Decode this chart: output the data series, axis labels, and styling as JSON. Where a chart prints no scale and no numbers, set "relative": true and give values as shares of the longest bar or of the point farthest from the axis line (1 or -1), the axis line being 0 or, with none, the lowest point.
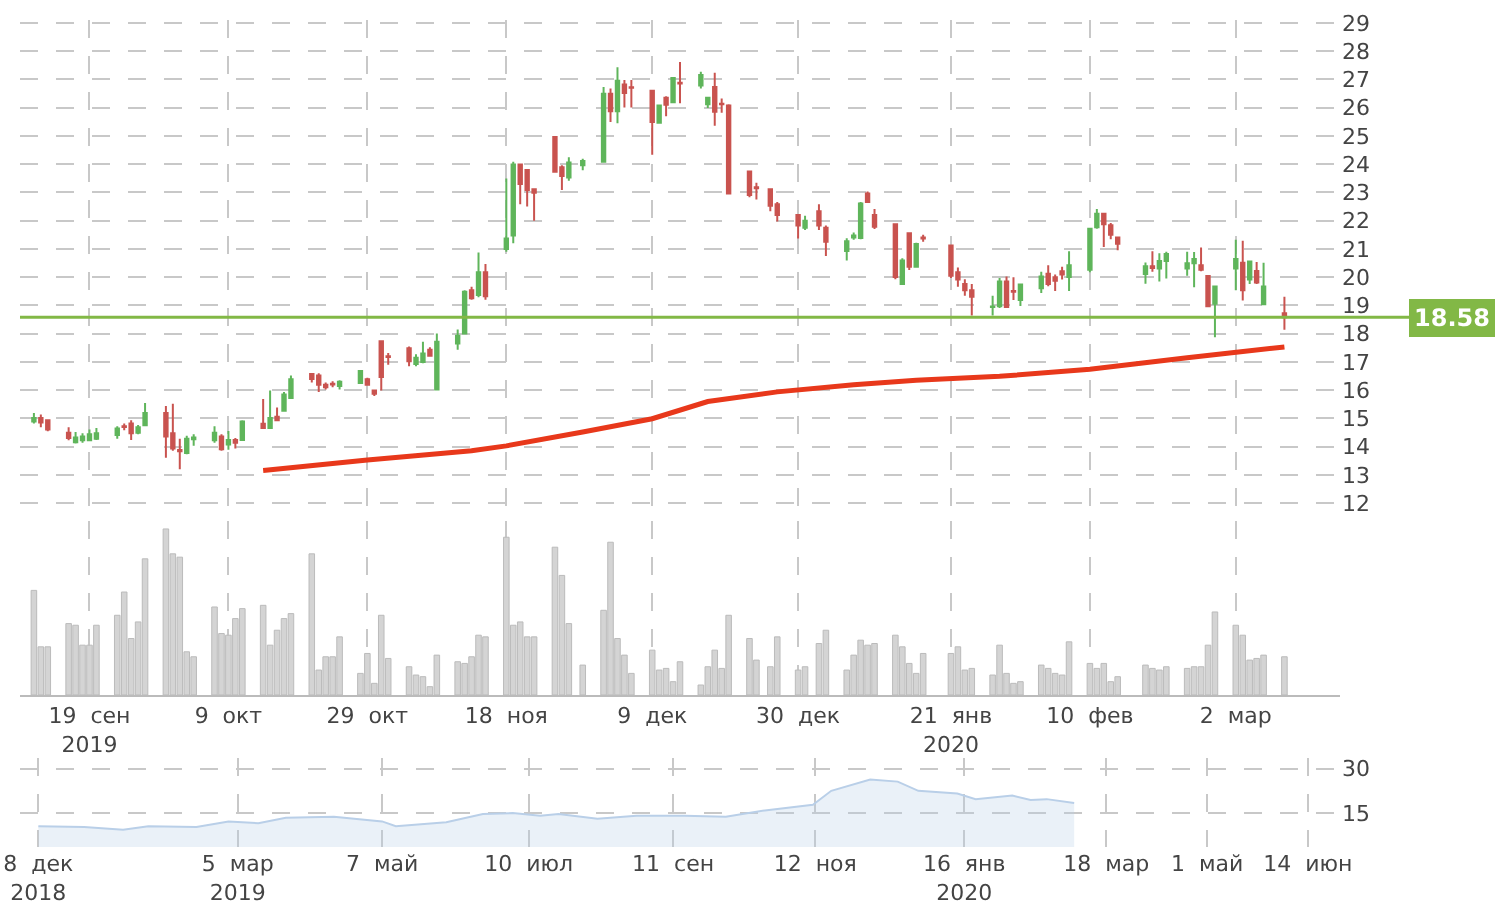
{
  "chart_data": [
    {
      "type": "candlestick",
      "x": [
        "2019-09-11",
        "2019-09-12",
        "2019-09-13",
        "2019-09-16",
        "2019-09-17",
        "2019-09-18",
        "2019-09-19",
        "2019-09-20",
        "2019-09-23",
        "2019-09-24",
        "2019-09-25",
        "2019-09-26",
        "2019-09-27",
        "2019-09-30",
        "2019-10-01",
        "2019-10-02",
        "2019-10-03",
        "2019-10-04",
        "2019-10-07",
        "2019-10-08",
        "2019-10-09",
        "2019-10-10",
        "2019-10-11",
        "2019-10-14",
        "2019-10-15",
        "2019-10-16",
        "2019-10-17",
        "2019-10-18",
        "2019-10-21",
        "2019-10-22",
        "2019-10-23",
        "2019-10-24",
        "2019-10-25",
        "2019-10-28",
        "2019-10-29",
        "2019-10-30",
        "2019-10-31",
        "2019-11-01",
        "2019-11-04",
        "2019-11-05",
        "2019-11-06",
        "2019-11-07",
        "2019-11-08",
        "2019-11-11",
        "2019-11-12",
        "2019-11-13",
        "2019-11-14",
        "2019-11-15",
        "2019-11-18",
        "2019-11-19",
        "2019-11-20",
        "2019-11-21",
        "2019-11-22",
        "2019-11-25",
        "2019-11-26",
        "2019-11-27",
        "2019-11-29",
        "2019-12-02",
        "2019-12-03",
        "2019-12-04",
        "2019-12-05",
        "2019-12-06",
        "2019-12-09",
        "2019-12-10",
        "2019-12-11",
        "2019-12-12",
        "2019-12-13",
        "2019-12-16",
        "2019-12-17",
        "2019-12-18",
        "2019-12-19",
        "2019-12-20",
        "2019-12-23",
        "2019-12-24",
        "2019-12-26",
        "2019-12-27",
        "2019-12-30",
        "2019-12-31",
        "2020-01-02",
        "2020-01-03",
        "2020-01-06",
        "2020-01-07",
        "2020-01-08",
        "2020-01-09",
        "2020-01-10",
        "2020-01-13",
        "2020-01-14",
        "2020-01-15",
        "2020-01-16",
        "2020-01-17",
        "2020-01-21",
        "2020-01-22",
        "2020-01-23",
        "2020-01-24",
        "2020-01-27",
        "2020-01-28",
        "2020-01-29",
        "2020-01-30",
        "2020-01-31",
        "2020-02-03",
        "2020-02-04",
        "2020-02-05",
        "2020-02-06",
        "2020-02-07",
        "2020-02-10",
        "2020-02-11",
        "2020-02-12",
        "2020-02-13",
        "2020-02-14",
        "2020-02-18",
        "2020-02-19",
        "2020-02-20",
        "2020-02-21",
        "2020-02-24",
        "2020-02-25",
        "2020-02-26",
        "2020-02-27",
        "2020-02-28",
        "2020-03-02",
        "2020-03-03",
        "2020-03-04",
        "2020-03-05",
        "2020-03-06",
        "2020-03-09"
      ],
      "ohlc": [
        [
          14.89,
          15.19,
          14.82,
          15.02
        ],
        [
          15.02,
          15.14,
          14.69,
          14.86
        ],
        [
          14.94,
          14.94,
          14.55,
          14.61
        ],
        [
          14.49,
          14.69,
          14.23,
          14.31
        ],
        [
          14.16,
          14.52,
          14.11,
          14.33
        ],
        [
          14.23,
          14.48,
          14.14,
          14.36
        ],
        [
          14.23,
          14.61,
          14.19,
          14.44
        ],
        [
          14.28,
          14.66,
          14.24,
          14.48
        ],
        [
          14.41,
          14.72,
          14.28,
          14.64
        ],
        [
          14.72,
          14.82,
          14.58,
          14.7
        ],
        [
          14.82,
          14.94,
          14.24,
          14.48
        ],
        [
          14.49,
          14.77,
          14.44,
          14.69
        ],
        [
          14.76,
          15.55,
          14.72,
          15.19
        ],
        [
          15.19,
          15.44,
          13.61,
          14.36
        ],
        [
          14.48,
          15.52,
          13.86,
          13.94
        ],
        [
          13.88,
          14.28,
          13.2,
          13.84
        ],
        [
          13.78,
          14.39,
          13.73,
          14.28
        ],
        [
          14.26,
          14.44,
          14.03,
          14.33
        ],
        [
          14.23,
          14.72,
          14.14,
          14.49
        ],
        [
          14.36,
          14.44,
          13.86,
          13.91
        ],
        [
          14.08,
          14.56,
          13.89,
          14.24
        ],
        [
          14.24,
          14.31,
          13.94,
          14.14
        ],
        [
          14.24,
          14.94,
          14.23,
          14.89
        ],
        [
          14.81,
          15.69,
          14.66,
          14.66
        ],
        [
          14.66,
          15.99,
          14.66,
          15.02
        ],
        [
          15.06,
          15.39,
          14.91,
          14.94
        ],
        [
          15.27,
          15.94,
          15.27,
          15.85
        ],
        [
          15.72,
          16.52,
          15.7,
          16.39
        ],
        [
          16.57,
          16.57,
          16.27,
          16.4
        ],
        [
          16.52,
          16.6,
          15.94,
          16.19
        ],
        [
          16.19,
          16.27,
          16.02,
          16.1
        ],
        [
          16.23,
          16.32,
          16.1,
          16.2
        ],
        [
          16.15,
          16.35,
          16.02,
          16.3
        ],
        [
          16.25,
          16.68,
          16.25,
          16.68
        ],
        [
          16.39,
          16.44,
          16.19,
          16.19
        ],
        [
          15.99,
          16.02,
          15.79,
          15.87
        ],
        [
          17.73,
          17.73,
          15.99,
          16.47
        ],
        [
          17.2,
          17.32,
          16.9,
          17.17
        ],
        [
          17.48,
          17.55,
          16.85,
          17.02
        ],
        [
          16.93,
          17.27,
          16.85,
          17.15
        ],
        [
          17.0,
          17.71,
          16.95,
          17.3
        ],
        [
          17.43,
          17.52,
          17.18,
          17.22
        ],
        [
          16.02,
          18.01,
          16.02,
          17.71
        ],
        [
          17.65,
          18.15,
          17.43,
          17.93
        ],
        [
          18.01,
          19.54,
          18.01,
          19.48
        ],
        [
          19.54,
          19.66,
          19.2,
          19.25
        ],
        [
          19.37,
          20.87,
          19.29,
          20.17
        ],
        [
          20.17,
          20.47,
          19.2,
          19.32
        ],
        [
          21.0,
          23.49,
          20.9,
          21.37
        ],
        [
          21.47,
          24.08,
          21.2,
          23.99
        ],
        [
          23.99,
          23.99,
          22.58,
          23.3
        ],
        [
          23.79,
          23.79,
          22.5,
          23.08
        ],
        [
          23.11,
          23.11,
          22.0,
          22.99
        ],
        [
          24.96,
          24.96,
          23.73,
          23.73
        ],
        [
          23.89,
          23.96,
          23.08,
          23.58
        ],
        [
          23.53,
          24.24,
          23.41,
          24.06
        ],
        [
          23.96,
          24.19,
          23.78,
          24.11
        ],
        [
          24.08,
          26.73,
          24.08,
          26.49
        ],
        [
          26.49,
          26.68,
          25.49,
          25.87
        ],
        [
          25.87,
          27.43,
          25.45,
          26.95
        ],
        [
          26.82,
          26.98,
          26.0,
          26.52
        ],
        [
          26.72,
          26.98,
          26.0,
          26.7
        ],
        [
          26.6,
          26.6,
          24.33,
          25.49
        ],
        [
          25.46,
          26.07,
          25.46,
          26.07
        ],
        [
          26.35,
          26.4,
          25.69,
          26.1
        ],
        [
          26.19,
          27.05,
          26.19,
          27.05
        ],
        [
          26.88,
          27.61,
          26.15,
          26.85
        ],
        [
          26.78,
          27.27,
          26.68,
          27.15
        ],
        [
          26.12,
          26.35,
          25.99,
          26.35
        ],
        [
          26.73,
          27.23,
          25.36,
          25.85
        ],
        [
          26.14,
          26.32,
          25.82,
          26.12
        ],
        [
          26.07,
          26.12,
          22.96,
          22.96
        ],
        [
          23.74,
          23.74,
          22.83,
          22.91
        ],
        [
          23.18,
          23.34,
          22.75,
          23.15
        ],
        [
          23.11,
          23.11,
          22.33,
          22.53
        ],
        [
          22.58,
          22.66,
          21.97,
          22.2
        ],
        [
          22.2,
          22.2,
          21.37,
          21.83
        ],
        [
          21.75,
          22.17,
          21.67,
          22.0
        ],
        [
          22.33,
          22.58,
          21.67,
          21.83
        ],
        [
          21.75,
          21.83,
          20.75,
          21.25
        ],
        [
          20.93,
          21.38,
          20.59,
          21.27
        ],
        [
          21.4,
          21.58,
          21.32,
          21.47
        ],
        [
          21.39,
          22.66,
          21.34,
          22.61
        ],
        [
          22.96,
          23.03,
          22.66,
          22.66
        ],
        [
          22.2,
          22.41,
          21.7,
          21.78
        ],
        [
          21.87,
          21.87,
          19.93,
          20.01
        ],
        [
          19.76,
          20.67,
          19.76,
          20.59
        ],
        [
          21.55,
          21.55,
          20.25,
          20.37
        ],
        [
          20.37,
          21.22,
          20.34,
          21.17
        ],
        [
          21.4,
          21.5,
          21.25,
          21.37
        ],
        [
          21.12,
          21.12,
          19.97,
          20.05
        ],
        [
          20.17,
          20.34,
          19.66,
          19.92
        ],
        [
          19.76,
          19.93,
          19.34,
          19.54
        ],
        [
          19.54,
          19.76,
          18.64,
          19.31
        ],
        [
          18.94,
          19.34,
          18.64,
          18.96
        ],
        [
          18.97,
          19.97,
          18.91,
          19.85
        ],
        [
          19.85,
          20.02,
          18.91,
          18.94
        ],
        [
          19.51,
          20.0,
          19.19,
          19.48
        ],
        [
          19.19,
          19.74,
          18.98,
          19.74
        ],
        [
          19.61,
          20.19,
          19.44,
          20.02
        ],
        [
          20.12,
          20.42,
          19.68,
          19.76
        ],
        [
          20.0,
          20.09,
          19.51,
          19.87
        ],
        [
          20.21,
          20.37,
          19.92,
          20.09
        ],
        [
          20.01,
          20.92,
          19.51,
          20.42
        ],
        [
          20.26,
          21.71,
          20.17,
          21.71
        ],
        [
          21.77,
          22.41,
          21.71,
          22.24
        ],
        [
          22.24,
          22.24,
          21.07,
          21.87
        ],
        [
          21.84,
          21.92,
          21.34,
          21.5
        ],
        [
          21.4,
          21.44,
          20.95,
          21.18
        ],
        [
          20.11,
          20.52,
          19.77,
          20.39
        ],
        [
          20.39,
          20.92,
          20.19,
          20.32
        ],
        [
          20.31,
          20.85,
          19.85,
          20.57
        ],
        [
          20.57,
          20.9,
          19.95,
          20.82
        ],
        [
          20.31,
          20.9,
          20.05,
          20.49
        ],
        [
          20.49,
          20.89,
          19.64,
          20.64
        ],
        [
          20.42,
          21.05,
          20.21,
          20.26
        ],
        [
          20.04,
          20.04,
          18.97,
          18.97
        ],
        [
          19.06,
          19.67,
          17.87,
          19.67
        ],
        [
          20.31,
          21.32,
          19.54,
          20.64
        ],
        [
          20.51,
          21.29,
          19.17,
          19.54
        ],
        [
          19.92,
          20.55,
          19.76,
          20.55
        ],
        [
          20.22,
          20.54,
          19.76,
          19.81
        ],
        [
          19.04,
          20.51,
          19.04,
          19.67
        ],
        [
          18.72,
          19.31,
          18.14,
          18.58
        ]
      ],
      "colors": [
        "#5fb55b",
        "#c9534f",
        "#c9534f",
        "#c9534f",
        "#5fb55b",
        "#5fb55b",
        "#5fb55b",
        "#5fb55b",
        "#5fb55b",
        "#c9534f",
        "#c9534f",
        "#5fb55b",
        "#5fb55b",
        "#c9534f",
        "#c9534f",
        "#c9534f",
        "#5fb55b",
        "#5fb55b",
        "#5fb55b",
        "#c9534f",
        "#5fb55b",
        "#c9534f",
        "#5fb55b",
        "#c9534f",
        "#5fb55b",
        "#c9534f",
        "#5fb55b",
        "#5fb55b",
        "#c9534f",
        "#c9534f",
        "#c9534f",
        "#c9534f",
        "#5fb55b",
        "#5fb55b",
        "#c9534f",
        "#c9534f",
        "#c9534f",
        "#c9534f",
        "#c9534f",
        "#5fb55b",
        "#5fb55b",
        "#c9534f",
        "#5fb55b",
        "#5fb55b",
        "#5fb55b",
        "#c9534f",
        "#5fb55b",
        "#c9534f",
        "#5fb55b",
        "#5fb55b",
        "#c9534f",
        "#c9534f",
        "#c9534f",
        "#c9534f",
        "#c9534f",
        "#5fb55b",
        "#5fb55b",
        "#5fb55b",
        "#c9534f",
        "#5fb55b",
        "#c9534f",
        "#c9534f",
        "#c9534f",
        "#5fb55b",
        "#c9534f",
        "#5fb55b",
        "#c9534f",
        "#5fb55b",
        "#5fb55b",
        "#c9534f",
        "#c9534f",
        "#c9534f",
        "#c9534f",
        "#c9534f",
        "#c9534f",
        "#c9534f",
        "#c9534f",
        "#5fb55b",
        "#c9534f",
        "#c9534f",
        "#5fb55b",
        "#5fb55b",
        "#5fb55b",
        "#c9534f",
        "#c9534f",
        "#c9534f",
        "#5fb55b",
        "#c9534f",
        "#5fb55b",
        "#c9534f",
        "#c9534f",
        "#c9534f",
        "#c9534f",
        "#c9534f",
        "#5fb55b",
        "#5fb55b",
        "#c9534f",
        "#c9534f",
        "#5fb55b",
        "#5fb55b",
        "#c9534f",
        "#c9534f",
        "#c9534f",
        "#5fb55b",
        "#5fb55b",
        "#5fb55b",
        "#c9534f",
        "#c9534f",
        "#c9534f",
        "#5fb55b",
        "#c9534f",
        "#5fb55b",
        "#5fb55b",
        "#5fb55b",
        "#5fb55b",
        "#c9534f",
        "#c9534f",
        "#5fb55b",
        "#5fb55b",
        "#c9534f",
        "#5fb55b",
        "#c9534f",
        "#5fb55b",
        "#c9534f"
      ],
      "xlim": [
        "2019-09-09",
        "2020-03-17"
      ],
      "tick_labels": "y",
      "series": [
        {
          "type": "line",
          "color": "#e8381b",
          "x": [
            "2019-10-14",
            "2019-10-29",
            "2019-11-13",
            "2019-11-18",
            "2019-11-29",
            "2019-12-09",
            "2019-12-17",
            "2019-12-27",
            "2020-01-07",
            "2020-01-16",
            "2020-01-28",
            "2020-02-10",
            "2020-02-24",
            "2020-03-09"
          ],
          "values": [
            13.16,
            13.53,
            13.86,
            14.03,
            14.52,
            14.99,
            15.6,
            15.94,
            16.19,
            16.35,
            16.49,
            16.74,
            17.15,
            17.53
          ]
        }
      ],
      "ylim": [
        11.7,
        29.1
      ],
      "yticks": [
        12,
        13,
        14,
        15,
        16,
        17,
        18,
        19,
        20,
        21,
        22,
        23,
        24,
        25,
        26,
        27,
        28,
        29
      ],
      "xticks": [
        {
          "value": "2019-09-19",
          "label": null
        },
        {
          "value": "2019-10-09",
          "label": null
        },
        {
          "value": "2019-10-29",
          "label": null
        },
        {
          "value": "2019-11-18",
          "label": null
        },
        {
          "value": "2019-12-09",
          "label": null
        },
        {
          "value": "2019-12-30",
          "label": null
        },
        {
          "value": "2020-01-21",
          "label": null
        },
        {
          "value": "2020-02-10",
          "label": null
        },
        {
          "value": "2020-03-02",
          "label": null
        }
      ],
      "grid": true,
      "ref_lines": [
        {
          "axis": "y",
          "value": 18.58,
          "label": "18.58",
          "color": "#82b846"
        }
      ]
    },
    {
      "type": "bar",
      "relative": true,
      "color": "#d4d4d4",
      "grid": true,
      "xlim": [
        "2019-09-09",
        "2020-03-17"
      ],
      "xticks": [
        {
          "value": "2019-09-19",
          "label": "19  сен\n2019"
        },
        {
          "value": "2019-10-09",
          "label": "9  окт"
        },
        {
          "value": "2019-10-29",
          "label": "29  окт"
        },
        {
          "value": "2019-11-18",
          "label": "18  ноя"
        },
        {
          "value": "2019-12-09",
          "label": "9  дек"
        },
        {
          "value": "2019-12-30",
          "label": "30  дек"
        },
        {
          "value": "2020-01-21",
          "label": "21  янв\n2020"
        },
        {
          "value": "2020-02-10",
          "label": "10  фев"
        },
        {
          "value": "2020-03-02",
          "label": "2  мар"
        }
      ],
      "x": [
        "2019-09-11",
        "2019-09-12",
        "2019-09-13",
        "2019-09-16",
        "2019-09-17",
        "2019-09-18",
        "2019-09-19",
        "2019-09-20",
        "2019-09-23",
        "2019-09-24",
        "2019-09-25",
        "2019-09-26",
        "2019-09-27",
        "2019-09-30",
        "2019-10-01",
        "2019-10-02",
        "2019-10-03",
        "2019-10-04",
        "2019-10-07",
        "2019-10-08",
        "2019-10-09",
        "2019-10-10",
        "2019-10-11",
        "2019-10-14",
        "2019-10-15",
        "2019-10-16",
        "2019-10-17",
        "2019-10-18",
        "2019-10-21",
        "2019-10-22",
        "2019-10-23",
        "2019-10-24",
        "2019-10-25",
        "2019-10-28",
        "2019-10-29",
        "2019-10-30",
        "2019-10-31",
        "2019-11-01",
        "2019-11-04",
        "2019-11-05",
        "2019-11-06",
        "2019-11-07",
        "2019-11-08",
        "2019-11-11",
        "2019-11-12",
        "2019-11-13",
        "2019-11-14",
        "2019-11-15",
        "2019-11-18",
        "2019-11-19",
        "2019-11-20",
        "2019-11-21",
        "2019-11-22",
        "2019-11-25",
        "2019-11-26",
        "2019-11-27",
        "2019-11-29",
        "2019-12-02",
        "2019-12-03",
        "2019-12-04",
        "2019-12-05",
        "2019-12-06",
        "2019-12-09",
        "2019-12-10",
        "2019-12-11",
        "2019-12-12",
        "2019-12-13",
        "2019-12-16",
        "2019-12-17",
        "2019-12-18",
        "2019-12-19",
        "2019-12-20",
        "2019-12-23",
        "2019-12-24",
        "2019-12-26",
        "2019-12-27",
        "2019-12-30",
        "2019-12-31",
        "2020-01-02",
        "2020-01-03",
        "2020-01-06",
        "2020-01-07",
        "2020-01-08",
        "2020-01-09",
        "2020-01-10",
        "2020-01-13",
        "2020-01-14",
        "2020-01-15",
        "2020-01-16",
        "2020-01-17",
        "2020-01-21",
        "2020-01-22",
        "2020-01-23",
        "2020-01-24",
        "2020-01-27",
        "2020-01-28",
        "2020-01-29",
        "2020-01-30",
        "2020-01-31",
        "2020-02-03",
        "2020-02-04",
        "2020-02-05",
        "2020-02-06",
        "2020-02-07",
        "2020-02-10",
        "2020-02-11",
        "2020-02-12",
        "2020-02-13",
        "2020-02-14",
        "2020-02-18",
        "2020-02-19",
        "2020-02-20",
        "2020-02-21",
        "2020-02-24",
        "2020-02-25",
        "2020-02-26",
        "2020-02-27",
        "2020-02-28",
        "2020-03-02",
        "2020-03-03",
        "2020-03-04",
        "2020-03-05",
        "2020-03-06",
        "2020-03-09"
      ],
      "values": [
        0.63,
        0.29,
        0.29,
        0.43,
        0.42,
        0.3,
        0.3,
        0.42,
        0.48,
        0.62,
        0.34,
        0.44,
        0.82,
        1.0,
        0.85,
        0.83,
        0.26,
        0.23,
        0.53,
        0.37,
        0.36,
        0.46,
        0.52,
        0.54,
        0.3,
        0.39,
        0.46,
        0.49,
        0.85,
        0.15,
        0.23,
        0.23,
        0.35,
        0.13,
        0.25,
        0.07,
        0.48,
        0.22,
        0.17,
        0.12,
        0.11,
        0.05,
        0.24,
        0.2,
        0.19,
        0.23,
        0.36,
        0.35,
        0.95,
        0.42,
        0.44,
        0.35,
        0.35,
        0.89,
        0.72,
        0.43,
        0.18,
        0.51,
        0.92,
        0.34,
        0.24,
        0.13,
        0.27,
        0.15,
        0.16,
        0.08,
        0.2,
        0.06,
        0.17,
        0.27,
        0.16,
        0.48,
        0.34,
        0.21,
        0.17,
        0.35,
        0.15,
        0.17,
        0.31,
        0.39,
        0.15,
        0.24,
        0.33,
        0.3,
        0.31,
        0.36,
        0.29,
        0.19,
        0.13,
        0.25,
        0.25,
        0.29,
        0.15,
        0.16,
        0.12,
        0.3,
        0.13,
        0.07,
        0.08,
        0.18,
        0.16,
        0.13,
        0.12,
        0.32,
        0.19,
        0.16,
        0.19,
        0.08,
        0.11,
        0.18,
        0.16,
        0.15,
        0.17,
        0.16,
        0.17,
        0.17,
        0.3,
        0.5,
        0.42,
        0.36,
        0.21,
        0.22,
        0.24,
        0.23
      ]
    },
    {
      "type": "area",
      "color": "#b9cfe8",
      "x": [
        "2018-12-08",
        "2018-12-28",
        "2019-01-14",
        "2019-01-25",
        "2019-02-15",
        "2019-03-01",
        "2019-03-14",
        "2019-03-26",
        "2019-04-16",
        "2019-05-07",
        "2019-05-13",
        "2019-06-04",
        "2019-06-20",
        "2019-07-03",
        "2019-07-15",
        "2019-07-23",
        "2019-08-09",
        "2019-08-26",
        "2019-09-16",
        "2019-10-04",
        "2019-10-21",
        "2019-11-11",
        "2019-11-19",
        "2019-12-06",
        "2019-12-18",
        "2019-12-27",
        "2020-01-13",
        "2020-01-21",
        "2020-02-06",
        "2020-02-14",
        "2020-02-21",
        "2020-03-04"
      ],
      "values": [
        10.6,
        10.3,
        9.4,
        10.6,
        10.3,
        12.2,
        11.6,
        13.4,
        13.8,
        12.2,
        10.6,
        11.9,
        14.7,
        15.0,
        14.1,
        14.7,
        13.1,
        14.1,
        14.1,
        13.8,
        15.9,
        17.8,
        22.5,
        26.3,
        25.6,
        22.5,
        21.6,
        19.7,
        20.9,
        19.4,
        19.7,
        18.4
      ],
      "xlim": [
        "2018-11-30",
        "2020-06-28"
      ],
      "xticks": [
        {
          "value": "2018-12-08",
          "label": "8  дек\n2018"
        },
        {
          "value": "2019-03-05",
          "label": "5  мар\n2019"
        },
        {
          "value": "2019-05-07",
          "label": "7  май"
        },
        {
          "value": "2019-07-10",
          "label": "10  июл"
        },
        {
          "value": "2019-09-11",
          "label": "11  сен"
        },
        {
          "value": "2019-11-12",
          "label": "12  ноя"
        },
        {
          "value": "2020-01-16",
          "label": "16  янв\n2020"
        },
        {
          "value": "2020-03-18",
          "label": "18  мар"
        },
        {
          "value": "2020-05-01",
          "label": "1  май"
        },
        {
          "value": "2020-06-14",
          "label": "14  июн"
        }
      ],
      "ylim": [
        3.6,
        33.7
      ],
      "yticks": [
        15,
        30
      ],
      "grid": true
    }
  ]
}
